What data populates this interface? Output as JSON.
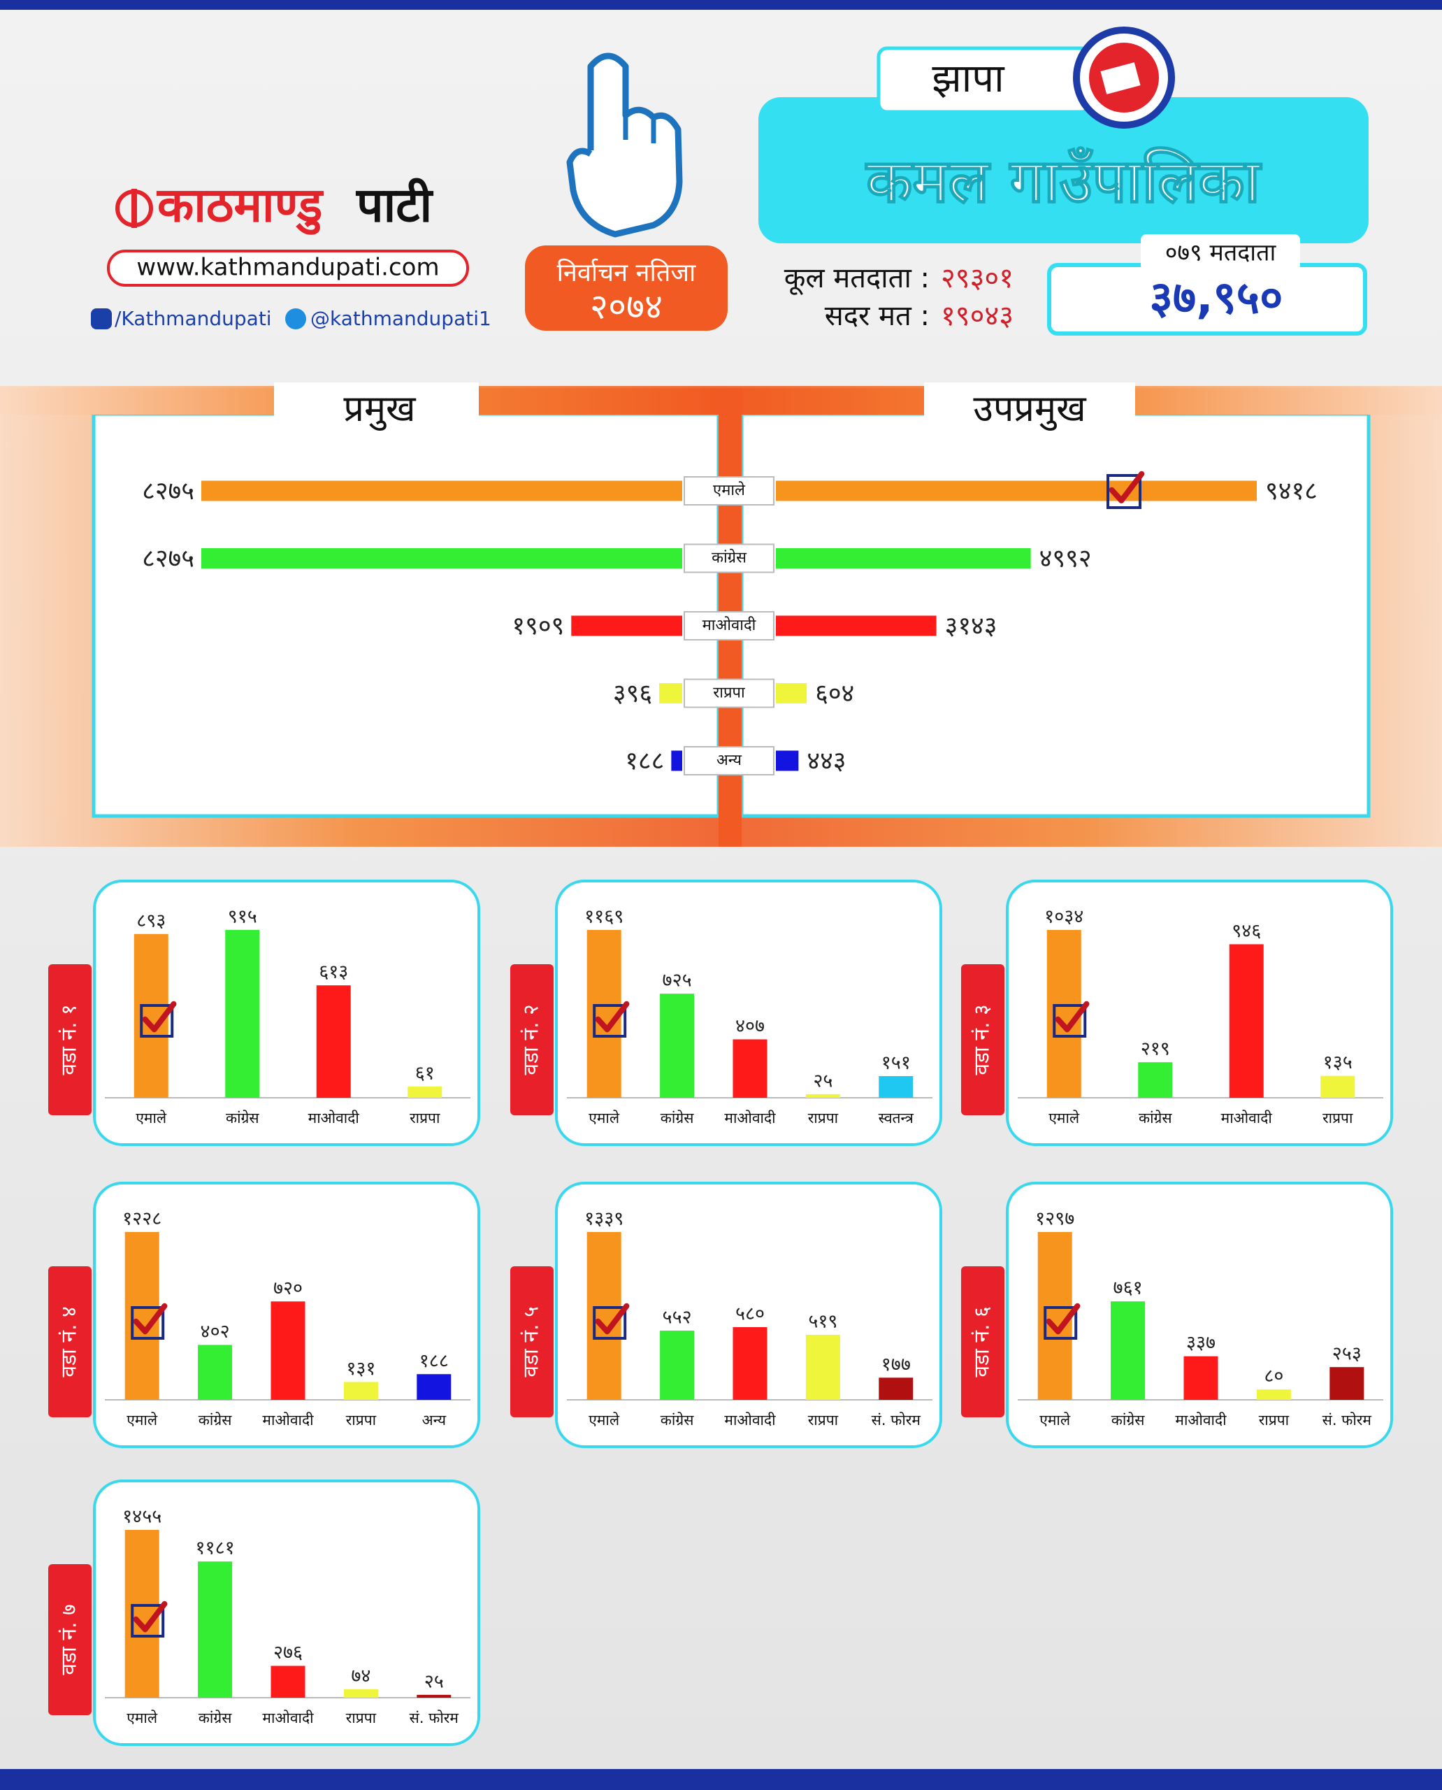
{
  "header": {
    "logo": {
      "left": "काठमाण्डु",
      "right": "पाटी"
    },
    "website": "www.kathmandupati.com",
    "facebook": "/Kathmandupati",
    "twitter": "@kathmandupati1",
    "badge": {
      "line1": "निर्वाचन नतिजा",
      "line2": "२०७४"
    },
    "district": "झापा",
    "municipality": "कमल गाउँपालिका",
    "voters": {
      "label": "कूल मतदाता :",
      "value": "२९३०१"
    },
    "valid_votes": {
      "label": "सदर मत :",
      "value": "१९०४३"
    },
    "voters_079": {
      "label": "०७९ मतदाता",
      "value": "३७,९५०"
    }
  },
  "chart_data": [
    {
      "type": "butterfly",
      "categories": [
        "एमाले",
        "कांग्रेस",
        "माओवादी",
        "राप्रपा",
        "अन्य"
      ],
      "colors": [
        "#f7941d",
        "#33ee33",
        "#ff1a1a",
        "#eef53a",
        "#1414e0"
      ],
      "series": [
        {
          "name": "प्रमुख",
          "values": [
            8275,
            8275,
            1909,
            396,
            188
          ],
          "value_labels": [
            "८२७५",
            "८२७५",
            "१९०९",
            "३९६",
            "१८८"
          ]
        },
        {
          "name": "उपप्रमुख",
          "values": [
            9418,
            4992,
            3143,
            604,
            443
          ],
          "value_labels": [
            "९४१८",
            "४९९२",
            "३१४३",
            "६०४",
            "४४३"
          ]
        }
      ]
    },
    {
      "type": "bar",
      "title": "वडा नं. १",
      "categories": [
        "एमाले",
        "कांग्रेस",
        "माओवादी",
        "राप्रपा"
      ],
      "values": [
        893,
        915,
        613,
        61
      ],
      "value_labels": [
        "८९३",
        "९१५",
        "६१३",
        "६१"
      ],
      "colors": [
        "#f7941d",
        "#33ee33",
        "#ff1a1a",
        "#eef53a"
      ]
    },
    {
      "type": "bar",
      "title": "वडा नं. २",
      "categories": [
        "एमाले",
        "कांग्रेस",
        "माओवादी",
        "राप्रपा",
        "स्वतन्त्र"
      ],
      "values": [
        1169,
        725,
        407,
        25,
        151
      ],
      "value_labels": [
        "११६९",
        "७२५",
        "४०७",
        "२५",
        "१५१"
      ],
      "colors": [
        "#f7941d",
        "#33ee33",
        "#ff1a1a",
        "#eef53a",
        "#1ec8f0"
      ]
    },
    {
      "type": "bar",
      "title": "वडा नं. ३",
      "categories": [
        "एमाले",
        "कांग्रेस",
        "माओवादी",
        "राप्रपा"
      ],
      "values": [
        1034,
        219,
        946,
        135
      ],
      "value_labels": [
        "१०३४",
        "२१९",
        "९४६",
        "१३५"
      ],
      "colors": [
        "#f7941d",
        "#33ee33",
        "#ff1a1a",
        "#eef53a"
      ]
    },
    {
      "type": "bar",
      "title": "वडा नं. ४",
      "categories": [
        "एमाले",
        "कांग्रेस",
        "माओवादी",
        "राप्रपा",
        "अन्य"
      ],
      "values": [
        1228,
        402,
        720,
        131,
        188
      ],
      "value_labels": [
        "१२२८",
        "४०२",
        "७२०",
        "१३१",
        "१८८"
      ],
      "colors": [
        "#f7941d",
        "#33ee33",
        "#ff1a1a",
        "#eef53a",
        "#1414e0"
      ]
    },
    {
      "type": "bar",
      "title": "वडा नं. ५",
      "categories": [
        "एमाले",
        "कांग्रेस",
        "माओवादी",
        "राप्रपा",
        "सं. फोरम"
      ],
      "values": [
        1339,
        552,
        580,
        519,
        177
      ],
      "value_labels": [
        "१३३९",
        "५५२",
        "५८०",
        "५१९",
        "१७७"
      ],
      "colors": [
        "#f7941d",
        "#33ee33",
        "#ff1a1a",
        "#eef53a",
        "#b01010"
      ]
    },
    {
      "type": "bar",
      "title": "वडा नं. ६",
      "categories": [
        "एमाले",
        "कांग्रेस",
        "माओवादी",
        "राप्रपा",
        "सं. फोरम"
      ],
      "values": [
        1297,
        761,
        337,
        80,
        253
      ],
      "value_labels": [
        "१२९७",
        "७६१",
        "३३७",
        "८०",
        "२५३"
      ],
      "colors": [
        "#f7941d",
        "#33ee33",
        "#ff1a1a",
        "#eef53a",
        "#b01010"
      ]
    },
    {
      "type": "bar",
      "title": "वडा नं. ७",
      "categories": [
        "एमाले",
        "कांग्रेस",
        "माओवादी",
        "राप्रपा",
        "सं. फोरम"
      ],
      "values": [
        1455,
        1181,
        276,
        74,
        25
      ],
      "value_labels": [
        "१४५५",
        "११८१",
        "२७६",
        "७४",
        "२५"
      ],
      "colors": [
        "#f7941d",
        "#33ee33",
        "#ff1a1a",
        "#eef53a",
        "#b01010"
      ]
    }
  ]
}
